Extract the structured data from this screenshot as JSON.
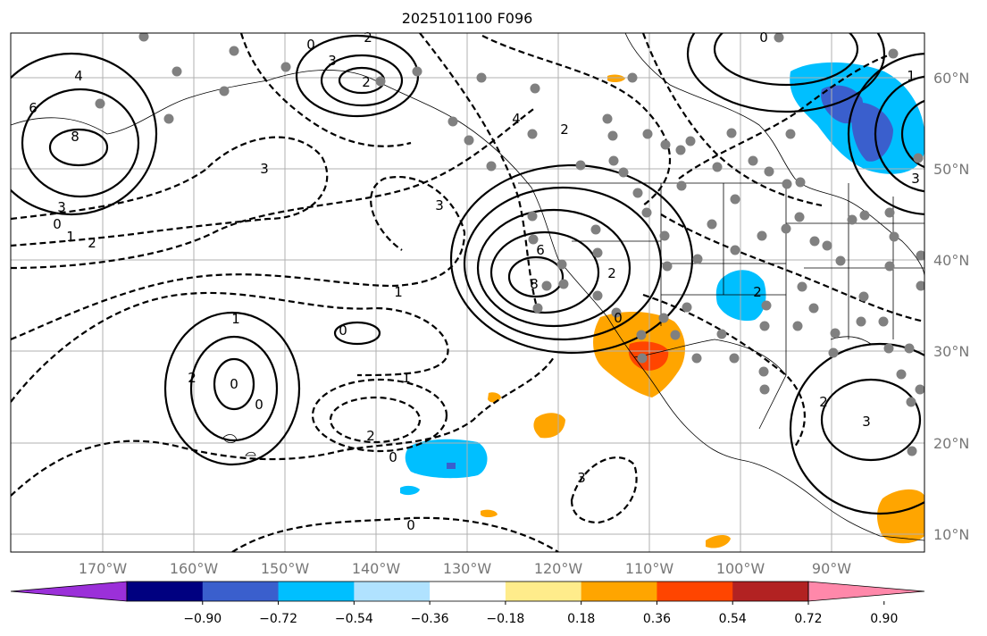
{
  "title": "2025101100 F096",
  "map": {
    "lon_range": [
      -180,
      -80
    ],
    "lat_range": [
      8,
      65
    ],
    "lon_ticks": [
      "170°W",
      "160°W",
      "150°W",
      "140°W",
      "130°W",
      "120°W",
      "110°W",
      "100°W",
      "90°W"
    ],
    "lat_ticks": [
      "60°N",
      "50°N",
      "40°N",
      "30°N",
      "20°N",
      "10°N"
    ],
    "grid": true,
    "contour_labels": [
      "4",
      "6",
      "8",
      "3",
      "0",
      "1",
      "2",
      "2",
      "3",
      "3",
      "4",
      "2",
      "0",
      "2",
      "3",
      "6",
      "8",
      "2",
      "0",
      "1",
      "0",
      "1",
      "2",
      "0",
      "1",
      "2",
      "0",
      "0",
      "3",
      "0",
      "2",
      "3",
      "1",
      "3",
      "2",
      "0"
    ]
  },
  "colorbar": {
    "colors": [
      "#9b30d9",
      "#000080",
      "#3a5fcd",
      "#00bfff",
      "#b0e2ff",
      "#ffffff",
      "#ffec8b",
      "#ffa500",
      "#ff4500",
      "#b22222",
      "#ff88aa"
    ],
    "ticks": [
      "−0.90",
      "−0.72",
      "−0.54",
      "−0.36",
      "−0.18",
      "0.18",
      "0.36",
      "0.54",
      "0.72",
      "0.90"
    ],
    "extend": "both"
  }
}
